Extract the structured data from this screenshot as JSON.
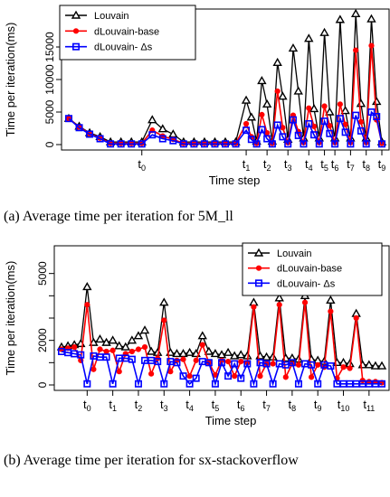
{
  "chart_data": [
    {
      "type": "line",
      "caption": "(a) Average time per iteration for 5M_ll",
      "xlabel": "Time step",
      "ylabel": "Time per iteration(ms)",
      "ylim": [
        0,
        20000
      ],
      "yticks": [
        0,
        5000,
        10000,
        15000
      ],
      "x_tick_labels": [
        "t0",
        "t1",
        "t2",
        "t3",
        "t4",
        "t5",
        "t6",
        "t7",
        "t8",
        "t9"
      ],
      "x_tick_positions": [
        7,
        17,
        19,
        21,
        23,
        24.5,
        25.5,
        27,
        28.5,
        30
      ],
      "legend_position": "top-left",
      "series": [
        {
          "name": "Louvain",
          "color": "#000000",
          "marker": "triangle",
          "x": [
            0,
            1,
            2,
            3,
            4,
            5,
            6,
            7,
            8,
            9,
            10,
            11,
            12,
            13,
            14,
            15,
            16,
            17,
            17.5,
            18,
            18.5,
            19,
            19.5,
            20,
            20.5,
            21,
            21.5,
            22,
            22.5,
            23,
            23.5,
            24,
            24.5,
            25,
            25.5,
            26,
            26.5,
            27,
            27.5,
            28,
            28.5,
            29,
            29.5,
            30
          ],
          "y": [
            4000,
            2800,
            1800,
            1200,
            400,
            400,
            400,
            400,
            3800,
            2400,
            1600,
            400,
            400,
            400,
            400,
            400,
            400,
            6800,
            4200,
            500,
            9800,
            6200,
            500,
            12600,
            7400,
            800,
            14800,
            8200,
            1000,
            16300,
            5500,
            1000,
            17200,
            5000,
            1000,
            19200,
            5200,
            1000,
            20100,
            6300,
            1000,
            19300,
            6600,
            400
          ]
        },
        {
          "name": "dLouvain-base",
          "color": "#ff0000",
          "marker": "circle",
          "x": [
            0,
            1,
            2,
            3,
            4,
            5,
            6,
            7,
            8,
            9,
            10,
            11,
            12,
            13,
            14,
            15,
            16,
            17,
            17.5,
            18,
            18.5,
            19,
            19.5,
            20,
            20.5,
            21,
            21.5,
            22,
            22.5,
            23,
            23.5,
            24,
            24.5,
            25,
            25.5,
            26,
            26.5,
            27,
            27.5,
            28,
            28.5,
            29,
            29.5,
            30
          ],
          "y": [
            4000,
            2700,
            1700,
            1000,
            200,
            200,
            200,
            200,
            2200,
            1300,
            800,
            200,
            200,
            200,
            200,
            200,
            200,
            3200,
            1200,
            200,
            4600,
            1800,
            200,
            8200,
            2600,
            300,
            4500,
            2000,
            300,
            5600,
            2800,
            300,
            5900,
            2900,
            300,
            6200,
            3100,
            300,
            14500,
            3500,
            300,
            15200,
            3800,
            200
          ]
        },
        {
          "name": "dLouvain- Δs",
          "color": "#0000ff",
          "marker": "square",
          "x": [
            0,
            1,
            2,
            3,
            4,
            5,
            6,
            7,
            8,
            9,
            10,
            11,
            12,
            13,
            14,
            15,
            16,
            17,
            17.5,
            18,
            18.5,
            19,
            19.5,
            20,
            20.5,
            21,
            21.5,
            22,
            22.5,
            23,
            23.5,
            24,
            24.5,
            25,
            25.5,
            26,
            26.5,
            27,
            27.5,
            28,
            28.5,
            29,
            29.5,
            30
          ],
          "y": [
            4000,
            2600,
            1600,
            900,
            100,
            100,
            100,
            100,
            1500,
            900,
            600,
            100,
            100,
            100,
            100,
            100,
            100,
            2200,
            800,
            100,
            2300,
            900,
            100,
            3000,
            1200,
            100,
            3800,
            1400,
            100,
            3200,
            1500,
            100,
            3600,
            1700,
            100,
            4000,
            1900,
            100,
            4500,
            2100,
            100,
            5000,
            4300,
            100
          ]
        }
      ]
    },
    {
      "type": "line",
      "caption": "(b) Average time per iteration for sx-stackoverflow",
      "xlabel": "Time step",
      "ylabel": "Time per iteration(ms)",
      "ylim": [
        0,
        6000
      ],
      "yticks": [
        0,
        1000,
        2000,
        3000,
        4000,
        5000
      ],
      "ytick_labels_shown": [
        "0",
        "2000",
        "5000"
      ],
      "x_tick_labels": [
        "t0",
        "t1",
        "t2",
        "t3",
        "t4",
        "t5",
        "t6",
        "t7",
        "t8",
        "t9",
        "t10",
        "t11"
      ],
      "x_tick_positions": [
        2,
        4,
        6,
        8,
        10,
        12,
        14,
        16,
        18,
        20,
        22,
        24
      ],
      "legend_position": "top-right",
      "series": [
        {
          "name": "Louvain",
          "color": "#000000",
          "marker": "triangle",
          "x": [
            0,
            0.5,
            1,
            1.5,
            2,
            2.5,
            3,
            3.5,
            4,
            4.5,
            5,
            5.5,
            6,
            6.5,
            7,
            7.5,
            8,
            8.5,
            9,
            9.5,
            10,
            10.5,
            11,
            11.5,
            12,
            12.5,
            13,
            13.5,
            14,
            14.5,
            15,
            15.5,
            16,
            16.5,
            17,
            17.5,
            18,
            18.5,
            19,
            19.5,
            20,
            20.5,
            21,
            21.5,
            22,
            22.5,
            23,
            23.5,
            24,
            24.5,
            25
          ],
          "y": [
            1700,
            1750,
            1800,
            1850,
            4400,
            1900,
            2050,
            1900,
            2000,
            1750,
            1700,
            2000,
            2200,
            2450,
            1500,
            1450,
            3700,
            1450,
            1400,
            1400,
            1450,
            1400,
            2200,
            1500,
            1400,
            1350,
            1450,
            1300,
            1350,
            1300,
            3700,
            1300,
            1250,
            1250,
            3900,
            1200,
            1200,
            1150,
            4000,
            1150,
            1100,
            1050,
            3800,
            1000,
            1000,
            950,
            3200,
            900,
            900,
            850,
            850
          ]
        },
        {
          "name": "dLouvain-base",
          "color": "#ff0000",
          "marker": "circle",
          "x": [
            0,
            0.5,
            1,
            1.5,
            2,
            2.5,
            3,
            3.5,
            4,
            4.5,
            5,
            5.5,
            6,
            6.5,
            7,
            7.5,
            8,
            8.5,
            9,
            9.5,
            10,
            10.5,
            11,
            11.5,
            12,
            12.5,
            13,
            13.5,
            14,
            14.5,
            15,
            15.5,
            16,
            16.5,
            17,
            17.5,
            18,
            18.5,
            19,
            19.5,
            20,
            20.5,
            21,
            21.5,
            22,
            22.5,
            23,
            23.5,
            24,
            24.5,
            25
          ],
          "y": [
            1600,
            1650,
            1700,
            1100,
            3600,
            700,
            1600,
            1500,
            1550,
            600,
            1400,
            1500,
            1600,
            1700,
            500,
            1200,
            2900,
            600,
            1100,
            1150,
            400,
            1100,
            1800,
            1000,
            450,
            1100,
            1050,
            400,
            1050,
            1000,
            3500,
            400,
            950,
            950,
            3600,
            350,
            950,
            900,
            3700,
            350,
            900,
            800,
            3300,
            300,
            800,
            750,
            3000,
            200,
            150,
            150,
            100
          ]
        },
        {
          "name": "dLouvain- Δs",
          "color": "#0000ff",
          "marker": "square",
          "x": [
            0,
            0.5,
            1,
            1.5,
            2,
            2.5,
            3,
            3.5,
            4,
            4.5,
            5,
            5.5,
            6,
            6.5,
            7,
            7.5,
            8,
            8.5,
            9,
            9.5,
            10,
            10.5,
            11,
            11.5,
            12,
            12.5,
            13,
            13.5,
            14,
            14.5,
            15,
            15.5,
            16,
            16.5,
            17,
            17.5,
            18,
            18.5,
            19,
            19.5,
            20,
            20.5,
            21,
            21.5,
            22,
            22.5,
            23,
            23.5,
            24,
            24.5,
            25
          ],
          "y": [
            1500,
            1450,
            1400,
            1350,
            50,
            1300,
            1250,
            1250,
            50,
            1200,
            1200,
            1150,
            50,
            1100,
            1100,
            1050,
            50,
            1050,
            1000,
            400,
            50,
            300,
            1050,
            1000,
            50,
            1000,
            400,
            950,
            300,
            950,
            50,
            1000,
            950,
            50,
            950,
            900,
            1000,
            50,
            950,
            900,
            50,
            900,
            850,
            50,
            50,
            50,
            50,
            50,
            50,
            50,
            50
          ]
        }
      ]
    }
  ]
}
